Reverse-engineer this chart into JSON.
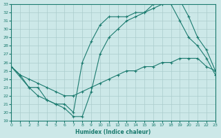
{
  "xlabel": "Humidex (Indice chaleur)",
  "bg_color": "#cce8e8",
  "line_color": "#1a7a6e",
  "grid_color": "#aacccc",
  "ylim": [
    19,
    33
  ],
  "xlim": [
    0,
    23
  ],
  "yticks": [
    19,
    20,
    21,
    22,
    23,
    24,
    25,
    26,
    27,
    28,
    29,
    30,
    31,
    32,
    33
  ],
  "xticks": [
    0,
    1,
    2,
    3,
    4,
    5,
    6,
    7,
    8,
    9,
    10,
    11,
    12,
    13,
    14,
    15,
    16,
    17,
    18,
    19,
    20,
    21,
    22,
    23
  ],
  "line1_x": [
    0,
    1,
    2,
    3,
    4,
    5,
    6,
    7,
    8,
    9,
    10,
    11,
    12,
    13,
    14,
    15,
    16,
    17,
    18,
    19,
    20,
    21,
    22,
    23
  ],
  "line1_y": [
    25.5,
    24.5,
    24.0,
    23.5,
    23.0,
    22.5,
    22.0,
    22.0,
    22.5,
    23.0,
    23.5,
    24.0,
    24.5,
    25.0,
    25.0,
    25.5,
    25.5,
    26.0,
    26.0,
    26.5,
    26.5,
    26.5,
    25.5,
    25.0
  ],
  "line2_x": [
    0,
    1,
    2,
    3,
    4,
    5,
    6,
    7,
    8,
    9,
    10,
    11,
    12,
    13,
    14,
    15,
    16,
    17,
    18,
    19,
    20,
    21,
    22,
    23
  ],
  "line2_y": [
    25.5,
    24.5,
    23.0,
    23.0,
    21.5,
    21.0,
    20.5,
    19.5,
    19.5,
    22.5,
    27.0,
    29.0,
    30.0,
    31.0,
    31.5,
    32.0,
    32.5,
    33.0,
    33.0,
    31.0,
    29.0,
    28.0,
    26.5,
    24.5
  ],
  "line3_x": [
    0,
    2,
    3,
    4,
    5,
    6,
    7,
    8,
    9,
    10,
    11,
    12,
    13,
    14,
    15,
    16,
    17,
    18,
    19,
    20,
    21,
    22,
    23
  ],
  "line3_y": [
    25.5,
    23.0,
    22.0,
    21.5,
    21.0,
    21.0,
    20.0,
    26.0,
    28.5,
    30.5,
    31.5,
    31.5,
    31.5,
    32.0,
    32.0,
    33.0,
    33.0,
    33.5,
    33.5,
    31.5,
    29.0,
    27.5,
    25.0
  ]
}
